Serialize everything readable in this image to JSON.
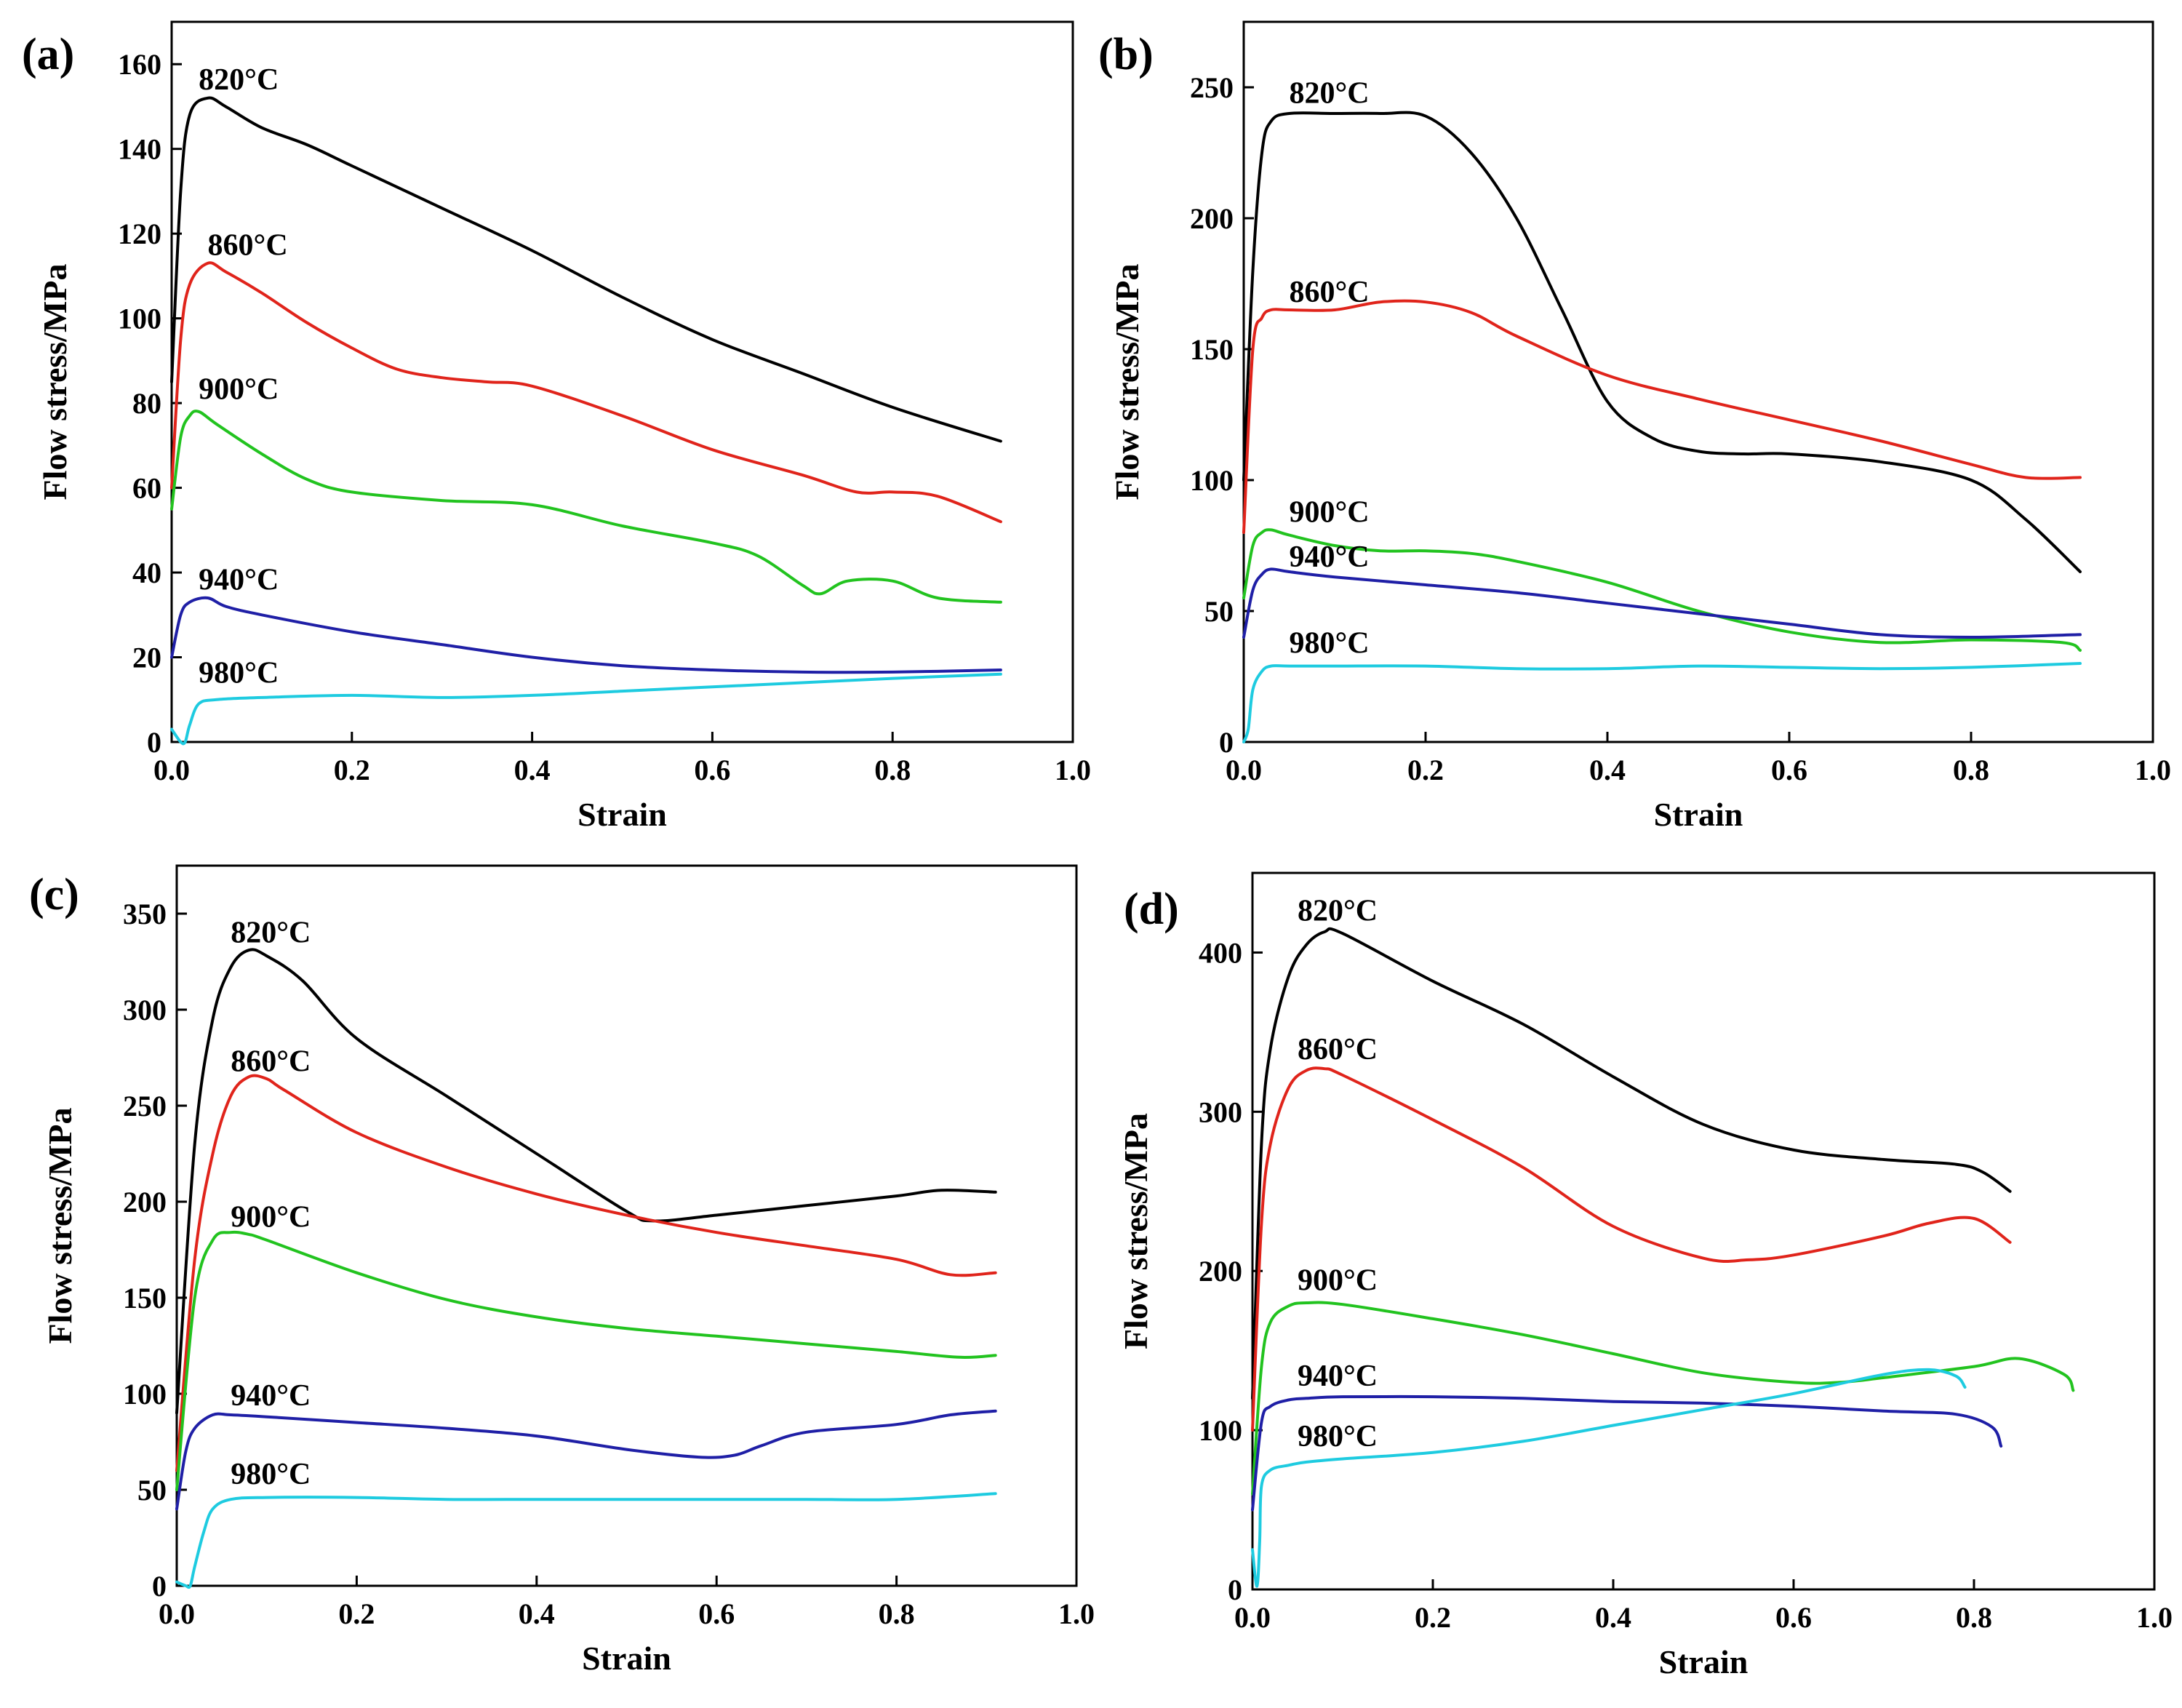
{
  "chart_data": [
    {
      "panel": "(a)",
      "type": "line",
      "xlabel": "Strain",
      "ylabel": "Flow stress/MPa",
      "xlim": [
        0,
        1.0
      ],
      "ylim": [
        0,
        170
      ],
      "xticks": [
        0.0,
        0.2,
        0.4,
        0.6,
        0.8,
        1.0
      ],
      "xtick_labels": [
        "0.0",
        "0.2",
        "0.4",
        "0.6",
        "0.8",
        "1.0"
      ],
      "yticks": [
        0,
        20,
        40,
        60,
        80,
        100,
        120,
        140,
        160
      ],
      "ytick_labels": [
        "0",
        "20",
        "40",
        "60",
        "80",
        "100",
        "120",
        "140",
        "160"
      ],
      "series": [
        {
          "name": "820°C",
          "color": "#000000",
          "label_at": [
            0.03,
            154
          ],
          "x": [
            0,
            0.01,
            0.02,
            0.04,
            0.06,
            0.1,
            0.15,
            0.2,
            0.3,
            0.4,
            0.5,
            0.6,
            0.7,
            0.8,
            0.92
          ],
          "y": [
            85,
            130,
            148,
            152,
            150,
            145,
            141,
            136,
            126,
            116,
            105,
            95,
            87,
            79,
            71
          ]
        },
        {
          "name": "860°C",
          "color": "#e0241b",
          "label_at": [
            0.04,
            115
          ],
          "x": [
            0,
            0.01,
            0.02,
            0.04,
            0.06,
            0.1,
            0.15,
            0.2,
            0.25,
            0.3,
            0.35,
            0.4,
            0.5,
            0.6,
            0.7,
            0.76,
            0.8,
            0.85,
            0.92
          ],
          "y": [
            60,
            95,
            108,
            113,
            111,
            106,
            99,
            93,
            88,
            86,
            85,
            84,
            77,
            69,
            63,
            59,
            59,
            58,
            52
          ]
        },
        {
          "name": "900°C",
          "color": "#22c31f",
          "label_at": [
            0.03,
            81
          ],
          "x": [
            0,
            0.01,
            0.02,
            0.03,
            0.05,
            0.1,
            0.15,
            0.2,
            0.3,
            0.4,
            0.5,
            0.6,
            0.65,
            0.7,
            0.72,
            0.75,
            0.8,
            0.85,
            0.92
          ],
          "y": [
            55,
            72,
            77,
            78,
            75,
            68,
            62,
            59,
            57,
            56,
            51,
            47,
            44,
            37,
            35,
            38,
            38,
            34,
            33
          ]
        },
        {
          "name": "940°C",
          "color": "#1f1fa6",
          "label_at": [
            0.03,
            36
          ],
          "x": [
            0,
            0.01,
            0.02,
            0.04,
            0.06,
            0.1,
            0.2,
            0.3,
            0.4,
            0.5,
            0.6,
            0.7,
            0.8,
            0.92
          ],
          "y": [
            20,
            30,
            33,
            34,
            32,
            30,
            26,
            23,
            20,
            18,
            17,
            16.5,
            16.5,
            17
          ]
        },
        {
          "name": "980°C",
          "color": "#1ecbe0",
          "label_at": [
            0.03,
            14
          ],
          "x": [
            0,
            0.01,
            0.015,
            0.02,
            0.03,
            0.05,
            0.1,
            0.2,
            0.3,
            0.4,
            0.5,
            0.6,
            0.7,
            0.8,
            0.92
          ],
          "y": [
            3,
            0,
            0,
            4,
            9,
            10,
            10.5,
            11,
            10.5,
            11,
            12,
            13,
            14,
            15,
            16
          ]
        }
      ]
    },
    {
      "panel": "(b)",
      "type": "line",
      "xlabel": "Strain",
      "ylabel": "Flow stress/MPa",
      "xlim": [
        0,
        1.0
      ],
      "ylim": [
        0,
        275
      ],
      "xticks": [
        0.0,
        0.2,
        0.4,
        0.6,
        0.8,
        1.0
      ],
      "xtick_labels": [
        "0.0",
        "0.2",
        "0.4",
        "0.6",
        "0.8",
        "1.0"
      ],
      "yticks": [
        0,
        50,
        100,
        150,
        200,
        250
      ],
      "ytick_labels": [
        "0",
        "50",
        "100",
        "150",
        "200",
        "250"
      ],
      "series": [
        {
          "name": "820°C",
          "color": "#000000",
          "label_at": [
            0.05,
            244
          ],
          "x": [
            0,
            0.01,
            0.02,
            0.03,
            0.05,
            0.1,
            0.15,
            0.2,
            0.25,
            0.3,
            0.35,
            0.4,
            0.45,
            0.5,
            0.55,
            0.6,
            0.7,
            0.8,
            0.86,
            0.92
          ],
          "y": [
            100,
            180,
            225,
            237,
            240,
            240,
            240,
            239,
            225,
            200,
            165,
            130,
            116,
            111,
            110,
            110,
            107,
            100,
            85,
            65
          ]
        },
        {
          "name": "860°C",
          "color": "#e0241b",
          "label_at": [
            0.05,
            168
          ],
          "x": [
            0,
            0.01,
            0.02,
            0.03,
            0.05,
            0.1,
            0.15,
            0.2,
            0.25,
            0.3,
            0.4,
            0.5,
            0.6,
            0.7,
            0.8,
            0.86,
            0.92
          ],
          "y": [
            80,
            150,
            162,
            165,
            165,
            165,
            168,
            168,
            164,
            155,
            140,
            131,
            123,
            115,
            106,
            101,
            101
          ]
        },
        {
          "name": "900°C",
          "color": "#22c31f",
          "label_at": [
            0.05,
            84
          ],
          "x": [
            0,
            0.01,
            0.02,
            0.03,
            0.05,
            0.1,
            0.15,
            0.2,
            0.25,
            0.3,
            0.4,
            0.5,
            0.6,
            0.7,
            0.8,
            0.9,
            0.92
          ],
          "y": [
            55,
            75,
            80,
            81,
            79,
            75,
            73,
            73,
            72,
            69,
            61,
            50,
            42,
            38,
            39,
            38,
            35
          ]
        },
        {
          "name": "940°C",
          "color": "#1f1fa6",
          "label_at": [
            0.05,
            67
          ],
          "x": [
            0,
            0.01,
            0.02,
            0.03,
            0.05,
            0.1,
            0.2,
            0.3,
            0.4,
            0.5,
            0.6,
            0.7,
            0.8,
            0.92
          ],
          "y": [
            40,
            58,
            64,
            66,
            65,
            63,
            60,
            57,
            53,
            49,
            45,
            41,
            40,
            41
          ]
        },
        {
          "name": "980°C",
          "color": "#1ecbe0",
          "label_at": [
            0.05,
            34
          ],
          "x": [
            0,
            0.005,
            0.01,
            0.02,
            0.03,
            0.05,
            0.1,
            0.2,
            0.3,
            0.4,
            0.5,
            0.6,
            0.7,
            0.8,
            0.92
          ],
          "y": [
            0,
            5,
            20,
            27,
            29,
            29,
            29,
            29,
            28,
            28,
            29,
            28.5,
            28,
            28.5,
            30
          ]
        }
      ]
    },
    {
      "panel": "(c)",
      "type": "line",
      "xlabel": "Strain",
      "ylabel": "Flow stress/MPa",
      "xlim": [
        0,
        1.0
      ],
      "ylim": [
        0,
        375
      ],
      "xticks": [
        0.0,
        0.2,
        0.4,
        0.6,
        0.8,
        1.0
      ],
      "xtick_labels": [
        "0.0",
        "0.2",
        "0.4",
        "0.6",
        "0.8",
        "1.0"
      ],
      "yticks": [
        0,
        50,
        100,
        150,
        200,
        250,
        300,
        350
      ],
      "ytick_labels": [
        "0",
        "50",
        "100",
        "150",
        "200",
        "250",
        "300",
        "350"
      ],
      "series": [
        {
          "name": "820°C",
          "color": "#000000",
          "label_at": [
            0.06,
            335
          ],
          "x": [
            0,
            0.02,
            0.04,
            0.06,
            0.08,
            0.1,
            0.14,
            0.2,
            0.3,
            0.4,
            0.5,
            0.53,
            0.6,
            0.7,
            0.8,
            0.85,
            0.91
          ],
          "y": [
            90,
            230,
            295,
            322,
            331,
            328,
            315,
            285,
            255,
            225,
            195,
            190,
            193,
            198,
            203,
            206,
            205
          ]
        },
        {
          "name": "860°C",
          "color": "#e0241b",
          "label_at": [
            0.06,
            268
          ],
          "x": [
            0,
            0.02,
            0.04,
            0.06,
            0.08,
            0.1,
            0.12,
            0.2,
            0.3,
            0.4,
            0.5,
            0.6,
            0.7,
            0.8,
            0.86,
            0.91
          ],
          "y": [
            60,
            170,
            225,
            255,
            265,
            264,
            258,
            236,
            218,
            204,
            193,
            184,
            177,
            170,
            162,
            163
          ]
        },
        {
          "name": "900°C",
          "color": "#22c31f",
          "label_at": [
            0.06,
            187
          ],
          "x": [
            0,
            0.02,
            0.04,
            0.06,
            0.08,
            0.1,
            0.2,
            0.3,
            0.4,
            0.5,
            0.6,
            0.7,
            0.8,
            0.87,
            0.91
          ],
          "y": [
            50,
            150,
            180,
            184,
            183,
            180,
            163,
            149,
            140,
            134,
            130,
            126,
            122,
            119,
            120
          ]
        },
        {
          "name": "940°C",
          "color": "#1f1fa6",
          "label_at": [
            0.06,
            94
          ],
          "x": [
            0,
            0.01,
            0.02,
            0.04,
            0.06,
            0.1,
            0.2,
            0.3,
            0.4,
            0.5,
            0.58,
            0.62,
            0.65,
            0.7,
            0.8,
            0.86,
            0.91
          ],
          "y": [
            40,
            70,
            82,
            89,
            89,
            88,
            85,
            82,
            78,
            71,
            67,
            68,
            73,
            80,
            84,
            89,
            91
          ]
        },
        {
          "name": "980°C",
          "color": "#1ecbe0",
          "label_at": [
            0.06,
            53
          ],
          "x": [
            0,
            0.01,
            0.015,
            0.02,
            0.03,
            0.04,
            0.06,
            0.1,
            0.2,
            0.3,
            0.4,
            0.5,
            0.6,
            0.7,
            0.8,
            0.91
          ],
          "y": [
            2,
            0,
            0,
            10,
            28,
            40,
            45,
            46,
            46,
            45,
            45,
            45,
            45,
            45,
            45,
            48
          ]
        }
      ]
    },
    {
      "panel": "(d)",
      "type": "line",
      "xlabel": "Strain",
      "ylabel": "Flow stress/MPa",
      "xlim": [
        0,
        1.0
      ],
      "ylim": [
        0,
        450
      ],
      "xticks": [
        0.0,
        0.2,
        0.4,
        0.6,
        0.8,
        1.0
      ],
      "xtick_labels": [
        "0.0",
        "0.2",
        "0.4",
        "0.6",
        "0.8",
        "1.0"
      ],
      "yticks": [
        0,
        100,
        200,
        300,
        400
      ],
      "ytick_labels": [
        "0",
        "100",
        "200",
        "300",
        "400"
      ],
      "series": [
        {
          "name": "820°C",
          "color": "#000000",
          "label_at": [
            0.05,
            420
          ],
          "x": [
            0,
            0.01,
            0.02,
            0.04,
            0.06,
            0.08,
            0.1,
            0.2,
            0.3,
            0.4,
            0.5,
            0.6,
            0.7,
            0.78,
            0.81,
            0.84
          ],
          "y": [
            120,
            280,
            340,
            385,
            405,
            413,
            412,
            382,
            355,
            322,
            292,
            276,
            270,
            267,
            262,
            250
          ]
        },
        {
          "name": "860°C",
          "color": "#e0241b",
          "label_at": [
            0.05,
            333
          ],
          "x": [
            0,
            0.01,
            0.02,
            0.04,
            0.06,
            0.08,
            0.1,
            0.2,
            0.3,
            0.4,
            0.5,
            0.55,
            0.6,
            0.7,
            0.75,
            0.8,
            0.84
          ],
          "y": [
            100,
            230,
            280,
            315,
            326,
            327,
            323,
            295,
            265,
            228,
            208,
            207,
            210,
            222,
            230,
            233,
            218
          ]
        },
        {
          "name": "900°C",
          "color": "#22c31f",
          "label_at": [
            0.05,
            188
          ],
          "x": [
            0,
            0.01,
            0.02,
            0.04,
            0.06,
            0.1,
            0.2,
            0.3,
            0.4,
            0.5,
            0.6,
            0.65,
            0.7,
            0.8,
            0.85,
            0.9,
            0.91
          ],
          "y": [
            60,
            140,
            168,
            178,
            180,
            179,
            170,
            160,
            148,
            136,
            130,
            130,
            133,
            140,
            145,
            135,
            125
          ]
        },
        {
          "name": "940°C",
          "color": "#1f1fa6",
          "label_at": [
            0.05,
            128
          ],
          "x": [
            0,
            0.01,
            0.02,
            0.04,
            0.06,
            0.1,
            0.2,
            0.3,
            0.4,
            0.5,
            0.6,
            0.7,
            0.78,
            0.82,
            0.83
          ],
          "y": [
            50,
            105,
            115,
            119,
            120,
            121,
            121,
            120,
            118,
            117,
            115,
            112,
            110,
            102,
            90
          ]
        },
        {
          "name": "980°C",
          "color": "#1ecbe0",
          "label_at": [
            0.05,
            90
          ],
          "x": [
            0,
            0.005,
            0.008,
            0.01,
            0.02,
            0.04,
            0.06,
            0.1,
            0.2,
            0.3,
            0.4,
            0.5,
            0.6,
            0.7,
            0.75,
            0.78,
            0.79
          ],
          "y": [
            25,
            2,
            30,
            65,
            75,
            78,
            80,
            82,
            86,
            93,
            103,
            113,
            123,
            135,
            138,
            134,
            127
          ]
        }
      ]
    }
  ]
}
